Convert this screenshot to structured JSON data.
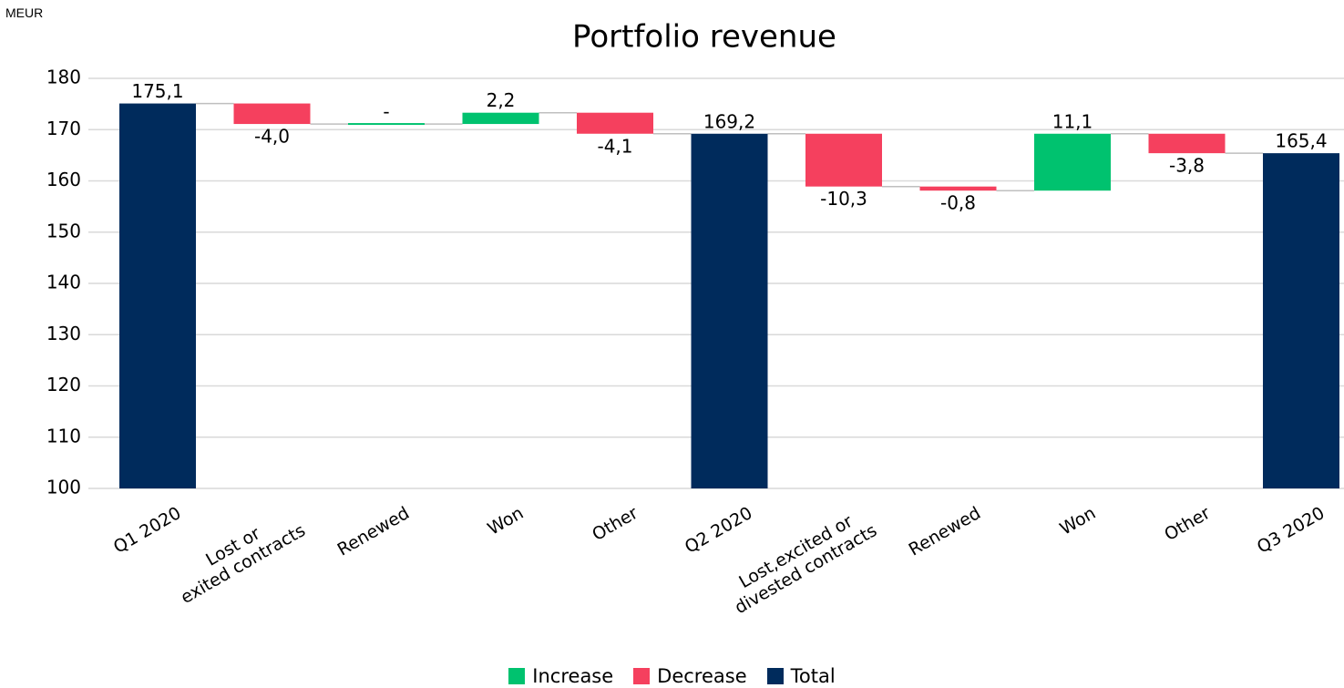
{
  "chart_data": {
    "type": "waterfall",
    "title": "Portfolio revenue",
    "unit_label": "MEUR",
    "categories": [
      "Q1 2020",
      "Lost or\nexited contracts",
      "Renewed",
      "Won",
      "Other",
      "Q2 2020",
      "Lost,excited or\ndivested contracts",
      "Renewed",
      "Won",
      "Other",
      "Q3 2020"
    ],
    "values": [
      175.1,
      -4.0,
      0,
      2.2,
      -4.1,
      169.2,
      -10.3,
      -0.8,
      11.1,
      -3.8,
      165.4
    ],
    "value_labels": [
      "175,1",
      "-4,0",
      "-",
      "2,2",
      "-4,1",
      "169,2",
      "-10,3",
      "-0,8",
      "11,1",
      "-3,8",
      "165,4"
    ],
    "measures": [
      "total",
      "relative",
      "relative",
      "relative",
      "relative",
      "total",
      "relative",
      "relative",
      "relative",
      "relative",
      "total"
    ],
    "legend": [
      {
        "name": "Increase",
        "color": "#00c26f"
      },
      {
        "name": "Decrease",
        "color": "#f5405e"
      },
      {
        "name": "Total",
        "color": "#002b5c"
      }
    ],
    "ylim": [
      100,
      180
    ],
    "yticks": [
      100,
      110,
      120,
      130,
      140,
      150,
      160,
      170,
      180
    ],
    "grid": true
  }
}
